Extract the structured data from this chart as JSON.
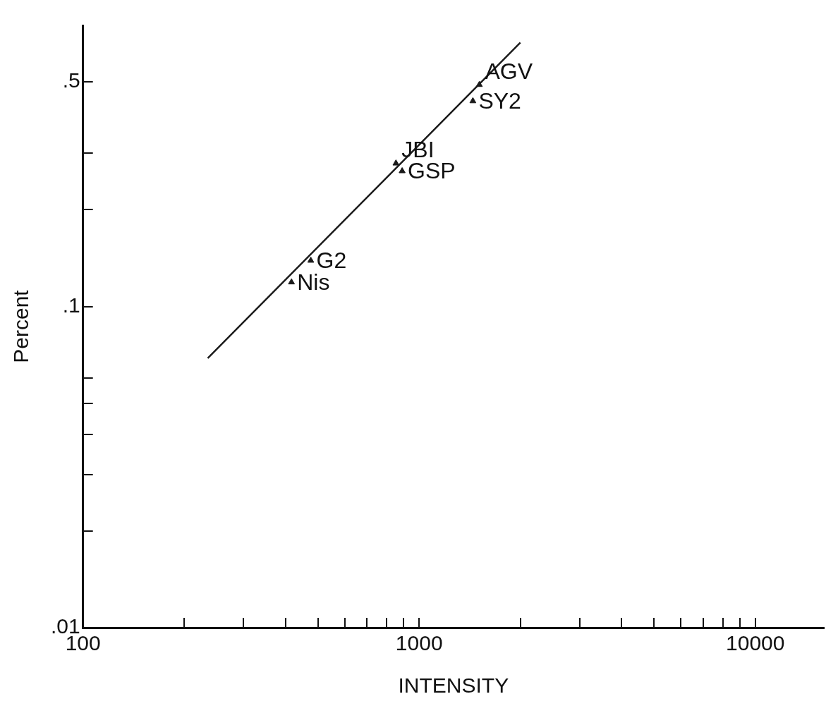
{
  "chart_data": {
    "type": "scatter",
    "xlabel": "INTENSITY",
    "ylabel": "Percent",
    "log": "xy",
    "grid": false,
    "legend": false,
    "marker": "triangle",
    "xlim": [
      100,
      16000
    ],
    "ylim": [
      0.01,
      0.75
    ],
    "xticks": [
      100,
      {
        "value": 200,
        "label": null
      },
      {
        "value": 300,
        "label": null
      },
      {
        "value": 400,
        "label": null
      },
      {
        "value": 500,
        "label": null
      },
      {
        "value": 600,
        "label": null
      },
      {
        "value": 700,
        "label": null
      },
      {
        "value": 800,
        "label": null
      },
      {
        "value": 900,
        "label": null
      },
      1000,
      {
        "value": 2000,
        "label": null
      },
      {
        "value": 3000,
        "label": null
      },
      {
        "value": 4000,
        "label": null
      },
      {
        "value": 5000,
        "label": null
      },
      {
        "value": 6000,
        "label": null
      },
      {
        "value": 7000,
        "label": null
      },
      {
        "value": 8000,
        "label": null
      },
      {
        "value": 9000,
        "label": null
      },
      10000
    ],
    "yticks": [
      {
        "value": 0.01,
        "label": ".01"
      },
      {
        "value": 0.02,
        "label": null
      },
      {
        "value": 0.03,
        "label": null
      },
      {
        "value": 0.04,
        "label": null
      },
      {
        "value": 0.05,
        "label": null
      },
      {
        "value": 0.06,
        "label": null
      },
      {
        "value": 0.1,
        "label": ".1"
      },
      {
        "value": 0.2,
        "label": null
      },
      {
        "value": 0.3,
        "label": null
      },
      {
        "value": 0.5,
        "label": ".5"
      }
    ],
    "series": [
      {
        "type": "scatter",
        "color": "#1a1a1a",
        "x": [
          1510,
          1445,
          853,
          890,
          476,
          417
        ],
        "values": [
          0.49,
          0.436,
          0.279,
          0.264,
          0.139,
          0.119
        ]
      },
      {
        "type": "line",
        "color": "#1a1a1a",
        "marker": "none",
        "x": [
          235,
          2000
        ],
        "values": [
          0.069,
          0.663
        ]
      }
    ],
    "annotations": [
      {
        "text": "SY2",
        "x": 1445,
        "y": 0.436
      },
      {
        "text": "AGV",
        "x": 1510,
        "y": 0.49
      },
      {
        "text": "GSP",
        "x": 890,
        "y": 0.264
      },
      {
        "text": "JBI",
        "x": 853,
        "y": 0.279
      },
      {
        "text": "G2",
        "x": 476,
        "y": 0.139
      },
      {
        "text": "Nis",
        "x": 417,
        "y": 0.119
      }
    ]
  }
}
